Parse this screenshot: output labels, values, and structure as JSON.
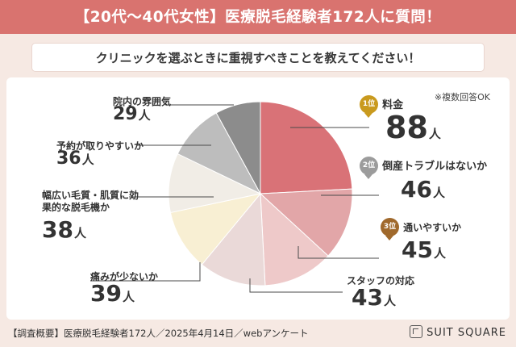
{
  "header": {
    "title": "【20代〜40代女性】医療脱毛経験者172人に質問！",
    "question": "クリニックを選ぶときに重視すべきことを教えてください！"
  },
  "note": "※複数回答OK",
  "footer": {
    "survey": "【調査概要】医療脱毛経験者172人／2025年4月14日／webアンケート",
    "logo": "SUIT SQUARE"
  },
  "unit": "人",
  "chart_data": {
    "type": "pie",
    "categories": [
      "料金",
      "倒産トラブルはないか",
      "通いやすいか",
      "スタッフの対応",
      "痛みが少ないか",
      "幅広い毛質・肌質に効果的な脱毛機か",
      "予約が取りやすいか",
      "院内の雰囲気"
    ],
    "values": [
      88,
      46,
      45,
      43,
      39,
      38,
      36,
      29
    ],
    "ranks": [
      "1位",
      "2位",
      "3位",
      "",
      "",
      "",
      "",
      ""
    ],
    "colors": [
      "#d97277",
      "#e2a6a8",
      "#eec9c9",
      "#ead9d8",
      "#f8efd3",
      "#f1ede6",
      "#bdbdbd",
      "#8c8c8c"
    ]
  }
}
